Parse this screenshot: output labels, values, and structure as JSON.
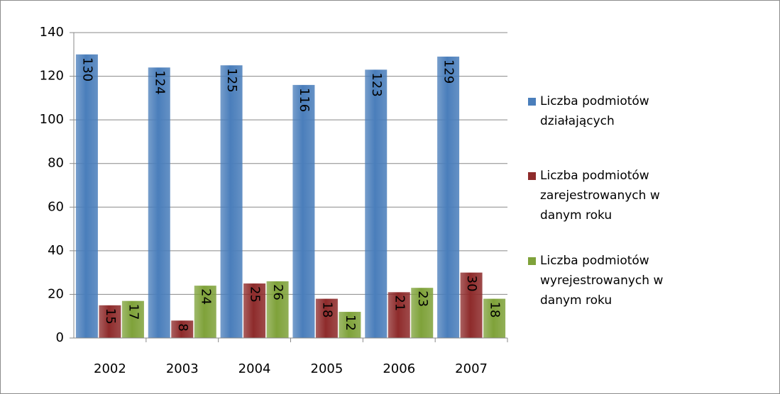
{
  "chart_data": {
    "type": "bar",
    "categories": [
      "2002",
      "2003",
      "2004",
      "2005",
      "2006",
      "2007"
    ],
    "series": [
      {
        "name": "Liczba podmiotów działających",
        "color": "#4a7ebb",
        "values": [
          130,
          124,
          125,
          116,
          123,
          129
        ]
      },
      {
        "name": "Liczba podmiotów zarejestrowanych w danym roku",
        "color": "#8e2b2b",
        "values": [
          15,
          8,
          25,
          18,
          21,
          30
        ]
      },
      {
        "name": "Liczba podmiotów wyrejestrowanych w danym roku",
        "color": "#7fa23a",
        "values": [
          17,
          24,
          26,
          12,
          23,
          18
        ]
      }
    ],
    "ylim": [
      0,
      140
    ],
    "yticks": [
      0,
      20,
      40,
      60,
      80,
      100,
      120,
      140
    ],
    "grid": true,
    "legend": "right"
  }
}
